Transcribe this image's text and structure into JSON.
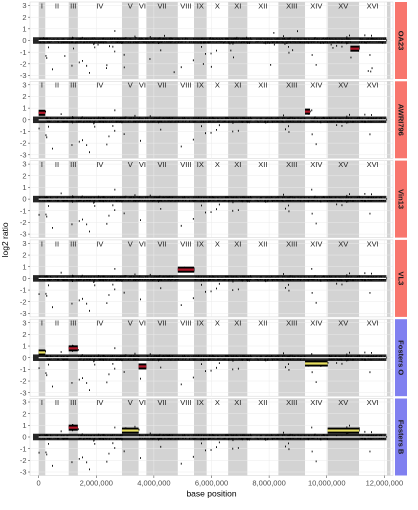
{
  "chart_data": {
    "type": "scatter",
    "xlabel": "base position",
    "ylabel": "log2 ratio",
    "xlim": [
      -300000,
      12300000
    ],
    "ylim": [
      -3.3,
      3.3
    ],
    "x_ticks": [
      0,
      2000000,
      4000000,
      6000000,
      8000000,
      10000000,
      12000000
    ],
    "x_tick_labels": [
      "0",
      "2,000,000",
      "4,000,000",
      "6,000,000",
      "8,000,000",
      "10,000,000",
      "12,000,000"
    ],
    "y_ticks": [
      -3,
      -2,
      -1,
      0,
      1,
      2,
      3
    ],
    "y_tick_labels": [
      "-3",
      "-2",
      "-1",
      "0",
      "1",
      "2",
      "3"
    ],
    "grid": true,
    "chromosomes": [
      {
        "label": "I",
        "start": 0,
        "end": 230000,
        "shaded": true
      },
      {
        "label": "II",
        "start": 230000,
        "end": 1043000,
        "shaded": false
      },
      {
        "label": "III",
        "start": 1043000,
        "end": 1360000,
        "shaded": true
      },
      {
        "label": "IV",
        "start": 1360000,
        "end": 2892000,
        "shaded": false
      },
      {
        "label": "V",
        "start": 2892000,
        "end": 3469000,
        "shaded": true
      },
      {
        "label": "VI",
        "start": 3469000,
        "end": 3739000,
        "shaded": false
      },
      {
        "label": "VII",
        "start": 3739000,
        "end": 4830000,
        "shaded": true
      },
      {
        "label": "VIII",
        "start": 4830000,
        "end": 5393000,
        "shaded": false
      },
      {
        "label": "IX",
        "start": 5393000,
        "end": 5832000,
        "shaded": true
      },
      {
        "label": "X",
        "start": 5832000,
        "end": 6578000,
        "shaded": false
      },
      {
        "label": "XI",
        "start": 6578000,
        "end": 7244000,
        "shaded": true
      },
      {
        "label": "XII",
        "start": 7244000,
        "end": 8322000,
        "shaded": false
      },
      {
        "label": "XIII",
        "start": 8322000,
        "end": 9246000,
        "shaded": true
      },
      {
        "label": "XIV",
        "start": 9246000,
        "end": 10030000,
        "shaded": false
      },
      {
        "label": "XV",
        "start": 10030000,
        "end": 11121000,
        "shaded": true
      },
      {
        "label": "XVI",
        "start": 11121000,
        "end": 12071000,
        "shaded": false
      }
    ],
    "panels": [
      {
        "name": "OA23",
        "strip_color": "#f8766d",
        "segments": [
          {
            "start": 10820000,
            "end": 11121000,
            "value": -0.7,
            "color": "#b2182b"
          }
        ]
      },
      {
        "name": "AWRI796",
        "strip_color": "#f8766d",
        "segments": [
          {
            "start": 0,
            "end": 230000,
            "value": 0.6,
            "color": "#b2182b"
          },
          {
            "start": 9246000,
            "end": 9420000,
            "value": 0.7,
            "color": "#b2182b"
          }
        ]
      },
      {
        "name": "Vin13",
        "strip_color": "#f8766d",
        "segments": []
      },
      {
        "name": "VL3",
        "strip_color": "#f8766d",
        "segments": [
          {
            "start": 4830000,
            "end": 5393000,
            "value": 0.75,
            "color": "#b2182b"
          }
        ]
      },
      {
        "name": "Fosters O",
        "strip_color": "#8080f0",
        "segments": [
          {
            "start": 0,
            "end": 230000,
            "value": 0.45,
            "color": "#e8e060"
          },
          {
            "start": 1043000,
            "end": 1360000,
            "value": 0.8,
            "color": "#b2182b"
          },
          {
            "start": 3469000,
            "end": 3739000,
            "value": -0.75,
            "color": "#b2182b"
          },
          {
            "start": 9246000,
            "end": 10030000,
            "value": -0.5,
            "color": "#e8e060"
          }
        ]
      },
      {
        "name": "Fosters B",
        "strip_color": "#8080f0",
        "segments": [
          {
            "start": 1043000,
            "end": 1360000,
            "value": 0.8,
            "color": "#b2182b"
          },
          {
            "start": 2892000,
            "end": 3469000,
            "value": 0.55,
            "color": "#e8e060"
          },
          {
            "start": 10030000,
            "end": 11121000,
            "value": 0.55,
            "color": "#e8e060"
          }
        ]
      }
    ]
  }
}
